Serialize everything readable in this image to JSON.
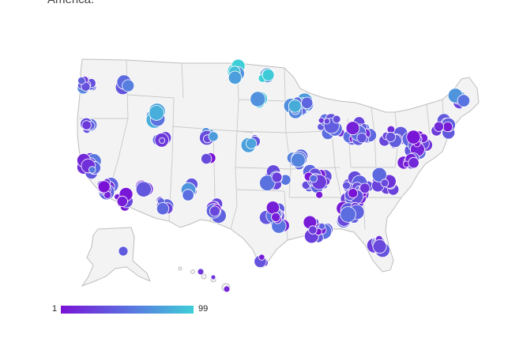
{
  "caption": "America.",
  "legend": {
    "min_label": "1",
    "max_label": "99",
    "color_low": "#7a12d6",
    "color_mid": "#5b6fe0",
    "color_high": "#3ecfd8"
  },
  "colors": {
    "land": "#f3f3f3",
    "border": "#bdbdbd",
    "background": "#ffffff"
  }
}
